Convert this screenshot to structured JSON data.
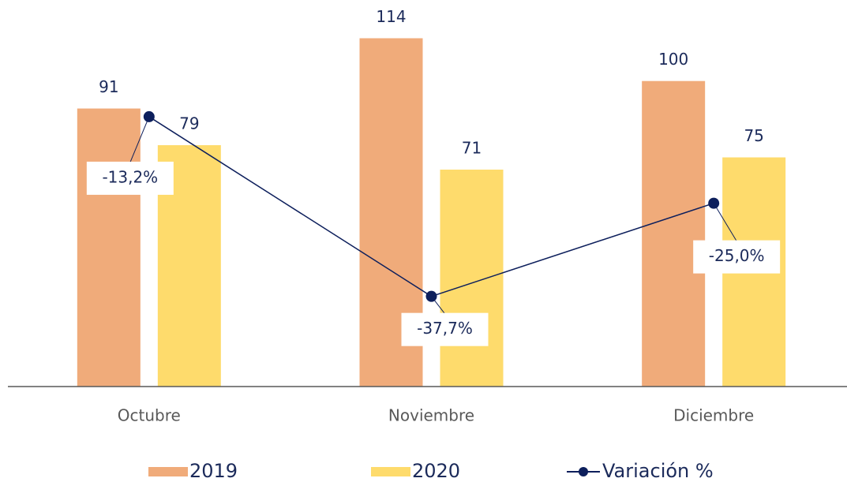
{
  "chart_data": {
    "type": "bar",
    "categories": [
      "Octubre",
      "Noviembre",
      "Diciembre"
    ],
    "series": [
      {
        "name": "2019",
        "type": "bar",
        "color": "#f0ab7a",
        "values": [
          91,
          114,
          100
        ]
      },
      {
        "name": "2020",
        "type": "bar",
        "color": "#fedb6c",
        "values": [
          79,
          71,
          75
        ]
      },
      {
        "name": "Variación %",
        "type": "line",
        "axis": "y2",
        "color": "#0d1f5c",
        "values": [
          -13.2,
          -37.7,
          -25.0
        ],
        "value_labels": [
          "-13,2%",
          "-37,7%",
          "-25,0%"
        ]
      }
    ],
    "ylim": [
      0,
      126
    ],
    "y2lim": [
      -50,
      2.5
    ],
    "legend": "bottom"
  }
}
